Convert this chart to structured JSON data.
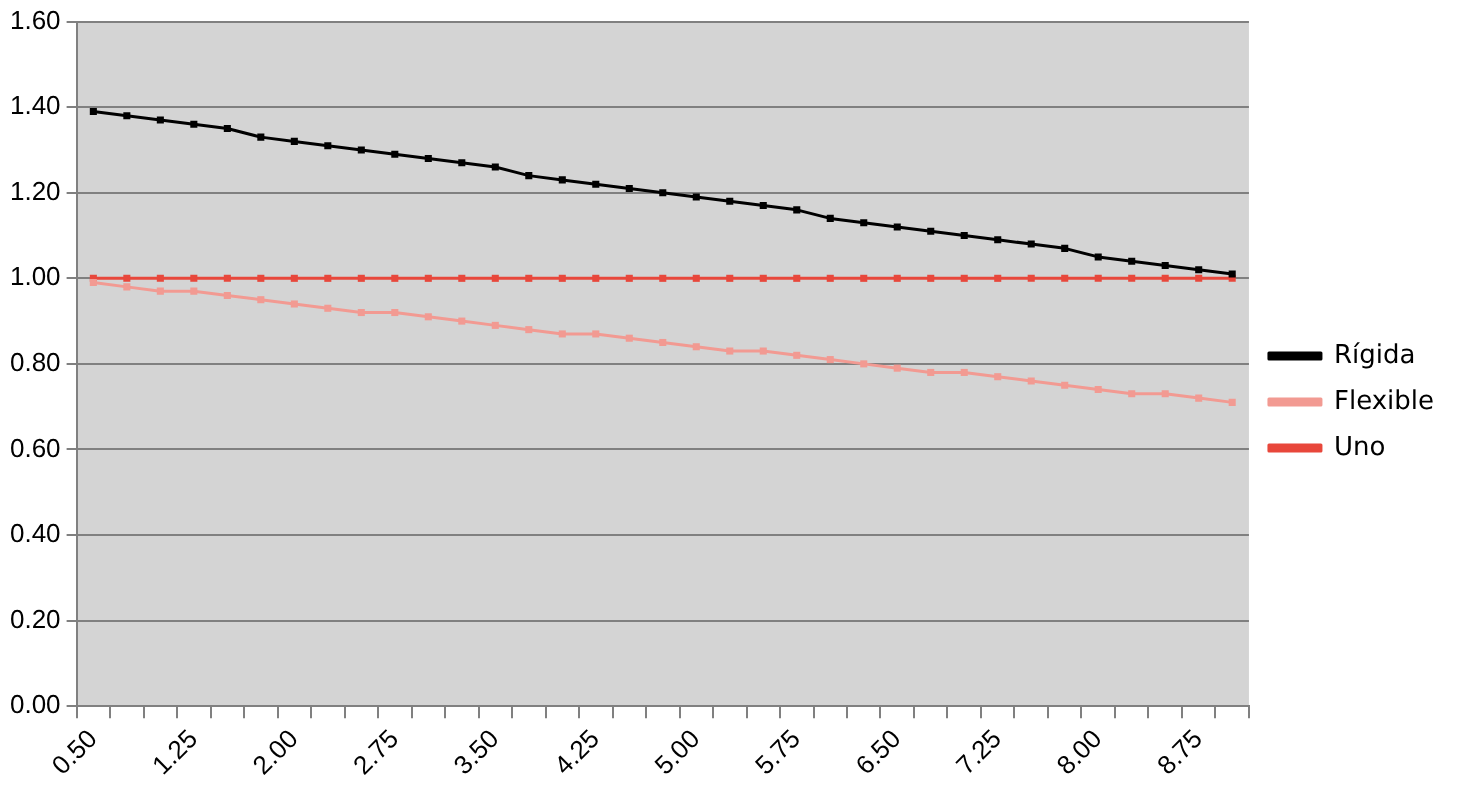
{
  "chart_data": {
    "type": "line",
    "categories": [
      "0.50",
      null,
      null,
      "1.25",
      null,
      null,
      "2.00",
      null,
      null,
      "2.75",
      null,
      null,
      "3.50",
      null,
      null,
      "4.25",
      null,
      null,
      "5.00",
      null,
      null,
      "5.75",
      null,
      null,
      "6.50",
      null,
      null,
      "7.25",
      null,
      null,
      "8.00",
      null,
      null,
      "8.75",
      null
    ],
    "series": [
      {
        "name": "Rígida",
        "color": "#000000",
        "values": [
          1.39,
          1.38,
          1.37,
          1.36,
          1.35,
          1.33,
          1.32,
          1.31,
          1.3,
          1.29,
          1.28,
          1.27,
          1.26,
          1.24,
          1.23,
          1.22,
          1.21,
          1.2,
          1.19,
          1.18,
          1.17,
          1.16,
          1.14,
          1.13,
          1.12,
          1.11,
          1.1,
          1.09,
          1.08,
          1.07,
          1.05,
          1.04,
          1.03,
          1.02,
          1.01
        ]
      },
      {
        "name": "Flexible",
        "color": "#f29a92",
        "values": [
          0.99,
          0.98,
          0.97,
          0.97,
          0.96,
          0.95,
          0.94,
          0.93,
          0.92,
          0.92,
          0.91,
          0.9,
          0.89,
          0.88,
          0.87,
          0.87,
          0.86,
          0.85,
          0.84,
          0.83,
          0.83,
          0.82,
          0.81,
          0.8,
          0.79,
          0.78,
          0.78,
          0.77,
          0.76,
          0.75,
          0.74,
          0.73,
          0.73,
          0.72,
          0.71
        ]
      },
      {
        "name": "Uno",
        "color": "#e8473b",
        "values": [
          1.0,
          1.0,
          1.0,
          1.0,
          1.0,
          1.0,
          1.0,
          1.0,
          1.0,
          1.0,
          1.0,
          1.0,
          1.0,
          1.0,
          1.0,
          1.0,
          1.0,
          1.0,
          1.0,
          1.0,
          1.0,
          1.0,
          1.0,
          1.0,
          1.0,
          1.0,
          1.0,
          1.0,
          1.0,
          1.0,
          1.0,
          1.0,
          1.0,
          1.0,
          1.0
        ]
      }
    ],
    "ylim": [
      0,
      1.6
    ],
    "yticks": [
      {
        "value": 0,
        "label": "0.00"
      },
      {
        "value": 0.2,
        "label": "0.20"
      },
      {
        "value": 0.4,
        "label": "0.40"
      },
      {
        "value": 0.6,
        "label": "0.60"
      },
      {
        "value": 0.8,
        "label": "0.80"
      },
      {
        "value": 1,
        "label": "1.00"
      },
      {
        "value": 1.2,
        "label": "1.20"
      },
      {
        "value": 1.4,
        "label": "1.40"
      },
      {
        "value": 1.6,
        "label": "1.60"
      }
    ],
    "grid": "y",
    "legend": "right",
    "marker": "square",
    "line_style": "solid"
  }
}
